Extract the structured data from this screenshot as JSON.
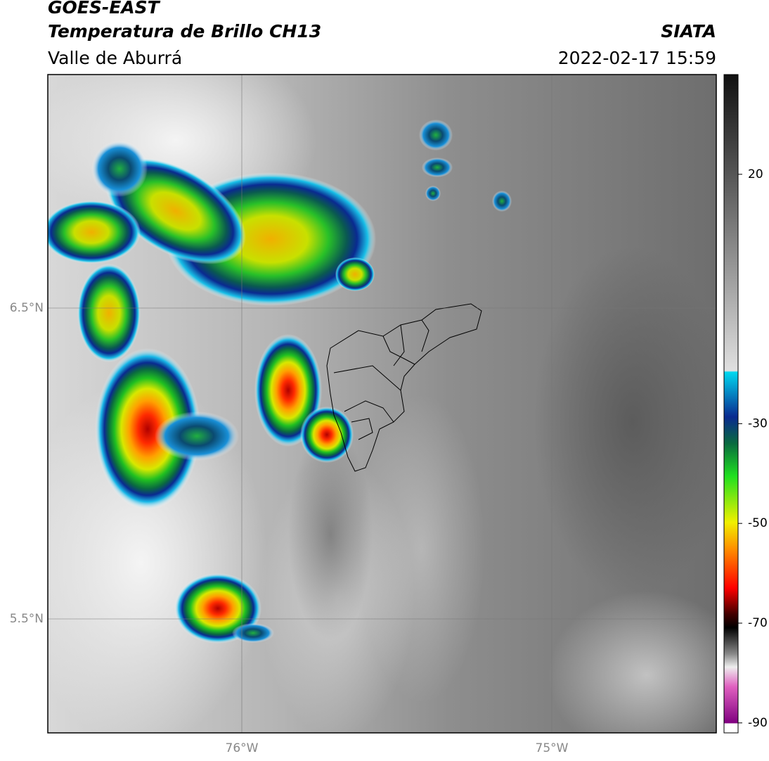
{
  "header": {
    "title": "GOES-EAST",
    "subtitle": "Temperatura de Brillo CH13",
    "region": "Valle de Aburrá",
    "source": "SIATA",
    "datetime": "2022-02-17 15:59"
  },
  "map": {
    "lat_labels": [
      "6.5°N",
      "5.5°N"
    ],
    "lon_labels": [
      "76°W",
      "75°W"
    ]
  },
  "colorbar": {
    "lim": [
      -92,
      40
    ],
    "ticks": [
      20,
      -30,
      -50,
      -70,
      -90
    ]
  }
}
